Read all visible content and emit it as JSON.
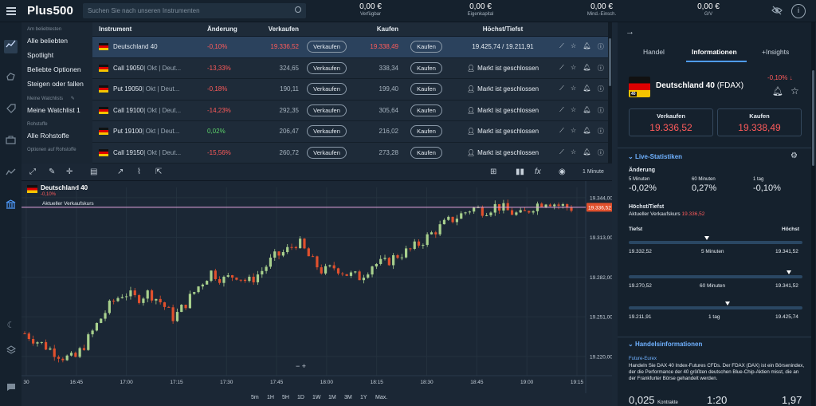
{
  "topbar": {
    "logo": "Plus500",
    "search_placeholder": "Suchen Sie nach unseren Instrumenten",
    "stats": [
      {
        "value": "0,00 €",
        "label": "Verfügbar"
      },
      {
        "value": "0,00 €",
        "label": "Eigenkapital"
      },
      {
        "value": "0,00 €",
        "label": "Mind.-Einsch."
      },
      {
        "value": "0,00 €",
        "label": "G/V"
      }
    ],
    "info": "i"
  },
  "sidebar": {
    "section1": "Am beliebtesten",
    "items1": [
      "Alle beliebten",
      "Spotlight",
      "Beliebte Optionen",
      "Steigen oder fallen"
    ],
    "section2": "Meine Watchlists",
    "items2": [
      "Meine Watchlist 1"
    ],
    "section3": "Rohstoffe",
    "items3": [
      "Alle Rohstoffe"
    ],
    "section4": "Optionen auf Rohstoffe"
  },
  "table": {
    "headers": {
      "instrument": "Instrument",
      "change": "Änderung",
      "sell": "Verkaufen",
      "buy": "Kaufen",
      "highlow": "Höchst/Tiefst"
    },
    "sell_btn": "Verkaufen",
    "buy_btn": "Kaufen",
    "rows": [
      {
        "name": "Deutschland 40",
        "detail": "",
        "change": "-0,10%",
        "sell": "19.336,52",
        "buy": "19.338,49",
        "hl": "19.425,74 / 19.211,91"
      },
      {
        "name": "Call 19050",
        "detail": " | Okt | Deut...",
        "change": "-13,33%",
        "sell": "324,65",
        "buy": "338,34",
        "hl": "Markt ist geschlossen"
      },
      {
        "name": "Put 19050",
        "detail": " | Okt | Deut...",
        "change": "-0,18%",
        "sell": "190,11",
        "buy": "199,40",
        "hl": "Markt ist geschlossen"
      },
      {
        "name": "Call 19100",
        "detail": " | Okt | Deut...",
        "change": "-14,23%",
        "sell": "292,35",
        "buy": "305,64",
        "hl": "Markt ist geschlossen"
      },
      {
        "name": "Put 19100",
        "detail": " | Okt | Deut...",
        "change": "0,02%",
        "sell": "206,47",
        "buy": "216,02",
        "hl": "Markt ist geschlossen"
      },
      {
        "name": "Call 19150",
        "detail": " | Okt | Deut...",
        "change": "-15,56%",
        "sell": "260,72",
        "buy": "273,28",
        "hl": "Markt ist geschlossen"
      }
    ]
  },
  "chart": {
    "title": "Deutschland 40",
    "change": "-0,10%",
    "interval": "1 Minute",
    "price_line_label": "Aktueller Verkaufskurs",
    "current_price": "19.336,52",
    "y_ticks": [
      "19.344,00",
      "19.313,00",
      "19.282,00",
      "19.251,00",
      "19.220,00"
    ],
    "x_ticks": [
      "30",
      "16:45",
      "17:00",
      "17:15",
      "17:30",
      "17:45",
      "18:00",
      "18:15",
      "18:30",
      "18:45",
      "19:00",
      "19:15"
    ],
    "timeframes": [
      "5m",
      "1H",
      "5H",
      "1D",
      "1W",
      "1M",
      "3M",
      "1Y",
      "Max."
    ],
    "zoom": "−  +"
  },
  "chart_data": {
    "type": "candlestick",
    "x_range": [
      "16:30",
      "19:15"
    ],
    "ylim": [
      19205,
      19352
    ],
    "close_path": [
      19238,
      19232,
      19226,
      19220,
      19218,
      19232,
      19248,
      19262,
      19270,
      19265,
      19270,
      19262,
      19250,
      19262,
      19275,
      19286,
      19280,
      19284,
      19278,
      19286,
      19297,
      19302,
      19310,
      19296,
      19286,
      19290,
      19284,
      19282,
      19292,
      19293,
      19299,
      19303,
      19310,
      19318,
      19325,
      19330,
      19336,
      19334,
      19338,
      19333,
      19330,
      19338,
      19342,
      19338,
      19336
    ],
    "current_price": 19336.52
  },
  "rpanel": {
    "tabs": [
      "Handel",
      "Informationen",
      "+Insights"
    ],
    "title": "Deutschland 40",
    "code": "(FDAX)",
    "flag_text": "40",
    "change": "-0,10%",
    "sell_label": "Verkaufen",
    "sell_value": "19.336,52",
    "buy_label": "Kaufen",
    "buy_value": "19.338,49",
    "live_stats": "Live-Statistiken",
    "change_label": "Änderung",
    "periods": [
      {
        "label": "5 Minuten",
        "value": "-0,02%"
      },
      {
        "label": "60 Minuten",
        "value": "0,27%"
      },
      {
        "label": "1 tag",
        "value": "-0,10%"
      }
    ],
    "hl_title": "Höchst/Tiefst",
    "current_label": "Aktueller Verkaufskurs",
    "current_value": "19.336,52",
    "low_label": "Tiefst",
    "high_label": "Höchst",
    "ranges": [
      {
        "low": "19.332,52",
        "label": "5 Minuten",
        "high": "19.341,52",
        "pos": 0.45
      },
      {
        "low": "19.270,52",
        "label": "60 Minuten",
        "high": "19.341,52",
        "pos": 0.92
      },
      {
        "low": "19.211,91",
        "label": "1 tag",
        "high": "19.425,74",
        "pos": 0.57
      }
    ],
    "trade_info": "Handelsinformationen",
    "futures": "Future-Eurex",
    "desc": "Handeln Sie DAX 40 Index-Futures CFDs. Der FDAX (DAX) ist ein Börsenindex, der die Performance der 40 größten deutschen Blue-Chip-Aktien misst, die an der Frankfurter Börse gehandelt werden.",
    "contracts_value": "0,025",
    "contracts_label": "Kontrakte",
    "leverage": "1:20",
    "spread": "1,97"
  }
}
